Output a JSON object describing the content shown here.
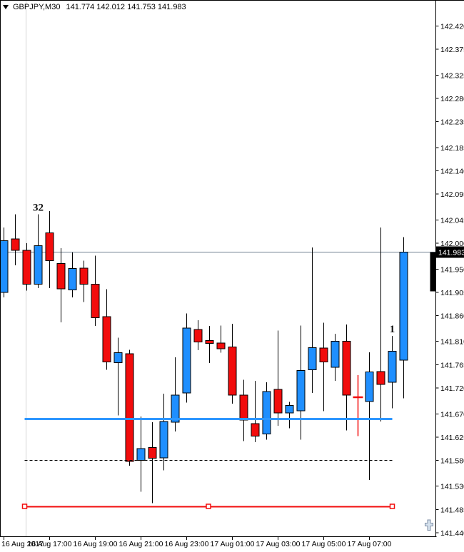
{
  "title_bar": {
    "symbol": "GBPJPY,M30",
    "ohlc": "141.774 142.012 141.753 141.983",
    "dropdown_icon": "triangle-down"
  },
  "price_axis": {
    "labels": [
      "142.420",
      "142.375",
      "142.325",
      "142.280",
      "142.235",
      "142.185",
      "142.140",
      "142.095",
      "142.045",
      "142.000",
      "141.950",
      "141.905",
      "141.860",
      "141.810",
      "141.765",
      "141.720",
      "141.670",
      "141.625",
      "141.580",
      "141.530",
      "141.485",
      "141.440"
    ],
    "current_price_label": {
      "text": "141.983",
      "bg": "#000000",
      "fg": "#ffffff"
    },
    "range_bar": {
      "from_price": 141.983,
      "to_price": 141.907,
      "color": "#000000"
    }
  },
  "time_axis": {
    "labels": [
      {
        "text": "16 Aug 2017",
        "bar": 0
      },
      {
        "text": "16 Aug 17:00",
        "bar": 4
      },
      {
        "text": "16 Aug 19:00",
        "bar": 8
      },
      {
        "text": "16 Aug 21:00",
        "bar": 12
      },
      {
        "text": "16 Aug 23:00",
        "bar": 16
      },
      {
        "text": "17 Aug 01:00",
        "bar": 20
      },
      {
        "text": "17 Aug 03:00",
        "bar": 24
      },
      {
        "text": "17 Aug 05:00",
        "bar": 28
      },
      {
        "text": "17 Aug 07:00",
        "bar": 32
      }
    ]
  },
  "chart_data": {
    "type": "candlestick",
    "symbol": "GBPJPY",
    "timeframe": "M30",
    "ylim": [
      141.44,
      142.42
    ],
    "up_color": "#1f8fff",
    "down_color": "#f20c0c",
    "outline_color": "#000000",
    "grid": {
      "vline_bar": 2,
      "color": "#d4d4d4"
    },
    "candles": [
      {
        "t": "16 Aug 15:00",
        "o": 141.905,
        "h": 142.03,
        "l": 141.895,
        "c": 142.005
      },
      {
        "t": "16 Aug 15:30",
        "o": 142.008,
        "h": 142.056,
        "l": 141.957,
        "c": 141.986
      },
      {
        "t": "16 Aug 16:00",
        "o": 141.986,
        "h": 142.0,
        "l": 141.908,
        "c": 141.921
      },
      {
        "t": "16 Aug 16:30",
        "o": 141.921,
        "h": 142.056,
        "l": 141.913,
        "c": 141.995
      },
      {
        "t": "16 Aug 17:00",
        "o": 142.02,
        "h": 142.062,
        "l": 141.913,
        "c": 141.966
      },
      {
        "t": "16 Aug 17:30",
        "o": 141.961,
        "h": 141.99,
        "l": 141.847,
        "c": 141.912
      },
      {
        "t": "16 Aug 18:00",
        "o": 141.91,
        "h": 141.982,
        "l": 141.895,
        "c": 141.951
      },
      {
        "t": "16 Aug 18:30",
        "o": 141.952,
        "h": 141.966,
        "l": 141.886,
        "c": 141.921
      },
      {
        "t": "16 Aug 19:00",
        "o": 141.921,
        "h": 141.976,
        "l": 141.84,
        "c": 141.856
      },
      {
        "t": "16 Aug 19:30",
        "o": 141.858,
        "h": 141.911,
        "l": 141.755,
        "c": 141.77
      },
      {
        "t": "16 Aug 20:00",
        "o": 141.769,
        "h": 141.817,
        "l": 141.667,
        "c": 141.788
      },
      {
        "t": "16 Aug 20:30",
        "o": 141.786,
        "h": 141.794,
        "l": 141.57,
        "c": 141.578
      },
      {
        "t": "16 Aug 21:00",
        "o": 141.58,
        "h": 141.665,
        "l": 141.519,
        "c": 141.603
      },
      {
        "t": "16 Aug 21:30",
        "o": 141.605,
        "h": 141.654,
        "l": 141.497,
        "c": 141.584
      },
      {
        "t": "16 Aug 22:00",
        "o": 141.585,
        "h": 141.709,
        "l": 141.561,
        "c": 141.655
      },
      {
        "t": "16 Aug 22:30",
        "o": 141.654,
        "h": 141.779,
        "l": 141.636,
        "c": 141.706
      },
      {
        "t": "16 Aug 23:00",
        "o": 141.71,
        "h": 141.864,
        "l": 141.692,
        "c": 141.836
      },
      {
        "t": "16 Aug 23:30",
        "o": 141.833,
        "h": 141.851,
        "l": 141.793,
        "c": 141.809
      },
      {
        "t": "17 Aug 00:00",
        "o": 141.812,
        "h": 141.84,
        "l": 141.768,
        "c": 141.806
      },
      {
        "t": "17 Aug 00:30",
        "o": 141.807,
        "h": 141.841,
        "l": 141.788,
        "c": 141.796
      },
      {
        "t": "17 Aug 01:00",
        "o": 141.799,
        "h": 141.844,
        "l": 141.69,
        "c": 141.706
      },
      {
        "t": "17 Aug 01:30",
        "o": 141.706,
        "h": 141.736,
        "l": 141.617,
        "c": 141.658
      },
      {
        "t": "17 Aug 02:00",
        "o": 141.651,
        "h": 141.734,
        "l": 141.615,
        "c": 141.627
      },
      {
        "t": "17 Aug 02:30",
        "o": 141.631,
        "h": 141.731,
        "l": 141.62,
        "c": 141.713
      },
      {
        "t": "17 Aug 03:00",
        "o": 141.717,
        "h": 141.831,
        "l": 141.647,
        "c": 141.672
      },
      {
        "t": "17 Aug 03:30",
        "o": 141.672,
        "h": 141.693,
        "l": 141.642,
        "c": 141.686
      },
      {
        "t": "17 Aug 04:00",
        "o": 141.676,
        "h": 141.841,
        "l": 141.62,
        "c": 141.754
      },
      {
        "t": "17 Aug 04:30",
        "o": 141.755,
        "h": 141.992,
        "l": 141.71,
        "c": 141.798
      },
      {
        "t": "17 Aug 05:00",
        "o": 141.797,
        "h": 141.846,
        "l": 141.675,
        "c": 141.77
      },
      {
        "t": "17 Aug 05:30",
        "o": 141.76,
        "h": 141.825,
        "l": 141.734,
        "c": 141.81
      },
      {
        "t": "17 Aug 06:00",
        "o": 141.81,
        "h": 141.843,
        "l": 141.638,
        "c": 141.706
      },
      {
        "t": "17 Aug 06:30",
        "o": 141.702,
        "h": 141.745,
        "l": 141.627,
        "c": 141.702
      },
      {
        "t": "17 Aug 07:00",
        "o": 141.694,
        "h": 141.789,
        "l": 141.542,
        "c": 141.751
      },
      {
        "t": "17 Aug 07:30",
        "o": 141.752,
        "h": 142.03,
        "l": 141.655,
        "c": 141.727
      },
      {
        "t": "17 Aug 08:00",
        "o": 141.731,
        "h": 141.821,
        "l": 141.681,
        "c": 141.791
      },
      {
        "t": "17 Aug 08:30",
        "o": 141.774,
        "h": 142.012,
        "l": 141.7,
        "c": 141.983
      }
    ],
    "annotations": [
      {
        "text": "32",
        "bar": 3
      },
      {
        "text": "1",
        "bar": 34
      }
    ],
    "overlays": [
      {
        "kind": "hline",
        "name": "bid-line",
        "price": 141.983,
        "color": "#708090",
        "width": 1,
        "span": "full"
      },
      {
        "kind": "trendline",
        "name": "support-line",
        "price": 141.66,
        "color": "#2e97ff",
        "width": 3,
        "from_bar": 2,
        "to_bar": 34
      },
      {
        "kind": "trendline",
        "name": "dashed-level",
        "price": 141.58,
        "color": "#000000",
        "width": 1,
        "dash": "4 3",
        "from_bar": 2,
        "to_bar": 34
      },
      {
        "kind": "trendline",
        "name": "selected-level",
        "price": 141.49,
        "color": "#f20c0c",
        "width": 2,
        "from_bar": 2,
        "to_bar": 34,
        "selected": true
      }
    ]
  },
  "misc": {
    "pan_icon": "cross-move"
  }
}
